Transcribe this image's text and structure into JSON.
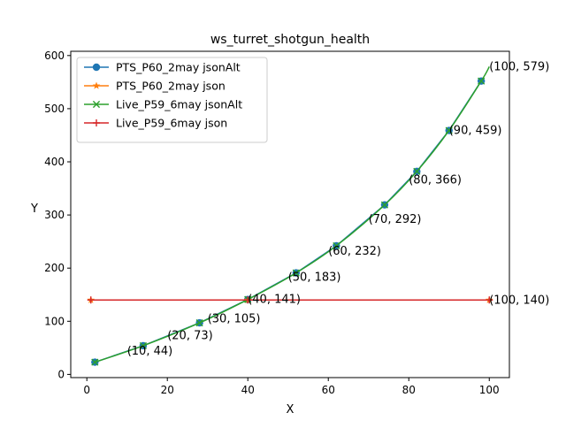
{
  "chart_data": {
    "type": "line",
    "title": "ws_turret_shotgun_health",
    "xlabel": "X",
    "ylabel": "Y",
    "xlim": [
      -4,
      105
    ],
    "ylim": [
      -6,
      608
    ],
    "xticks": [
      0,
      20,
      40,
      60,
      80,
      100
    ],
    "yticks": [
      0,
      100,
      200,
      300,
      400,
      500,
      600
    ],
    "grid": false,
    "legend": "top-left",
    "series": [
      {
        "name": "PTS_P60_2may jsonAlt",
        "color": "#1f77b4",
        "marker": "circle",
        "x": [
          2,
          14,
          28,
          40,
          52,
          62,
          74,
          82,
          90,
          98
        ],
        "y": [
          23,
          54,
          97,
          141,
          191,
          242,
          319,
          382,
          459,
          552
        ]
      },
      {
        "name": "PTS_P60_2may json",
        "color": "#ff7f0e",
        "marker": "star",
        "x": [
          1,
          40,
          100
        ],
        "y": [
          140,
          140,
          140
        ]
      },
      {
        "name": "Live_P59_6may jsonAlt",
        "color": "#2ca02c",
        "marker": "x",
        "curve": true,
        "x": [
          2,
          14,
          28,
          40,
          52,
          62,
          74,
          82,
          90,
          98,
          100
        ],
        "y": [
          23,
          54,
          97,
          141,
          191,
          242,
          319,
          382,
          459,
          552,
          579
        ]
      },
      {
        "name": "Live_P59_6may json",
        "color": "#d62728",
        "marker": "plus",
        "x": [
          1,
          40,
          100
        ],
        "y": [
          140,
          140,
          140
        ]
      }
    ],
    "annotations": [
      {
        "text": "(10, 44)",
        "x": 10,
        "y": 44
      },
      {
        "text": "(20, 73)",
        "x": 20,
        "y": 73
      },
      {
        "text": "(30, 105)",
        "x": 30,
        "y": 105
      },
      {
        "text": "(40, 141)",
        "x": 40,
        "y": 141
      },
      {
        "text": "(50, 183)",
        "x": 50,
        "y": 183
      },
      {
        "text": "(60, 232)",
        "x": 60,
        "y": 232
      },
      {
        "text": "(70, 292)",
        "x": 70,
        "y": 292
      },
      {
        "text": "(80, 366)",
        "x": 80,
        "y": 366
      },
      {
        "text": "(90, 459)",
        "x": 90,
        "y": 459
      },
      {
        "text": "(100, 579)",
        "x": 100,
        "y": 579
      },
      {
        "text": "(100, 140)",
        "x": 100,
        "y": 140
      }
    ]
  }
}
